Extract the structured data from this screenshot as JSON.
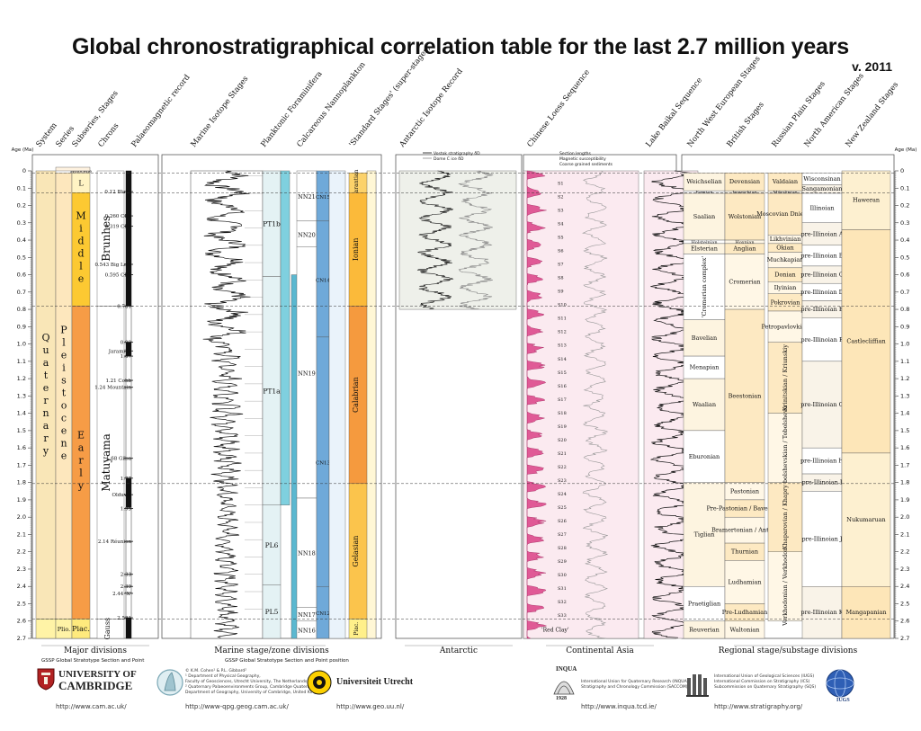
{
  "title": "Global chronostratigraphical correlation table for the last 2.7 million years",
  "version": "v. 2011",
  "chart_data": {
    "type": "table",
    "age_axis": {
      "label": "Age (Ma)",
      "range": [
        0,
        2.7
      ],
      "ticks": [
        "0",
        "0.1",
        "0.2",
        "0.3",
        "0.4",
        "0.5",
        "0.6",
        "0.7",
        "0.8",
        "0.9",
        "1.0",
        "1.1",
        "1.2",
        "1.3",
        "1.4",
        "1.5",
        "1.6",
        "1.7",
        "1.8",
        "1.9",
        "2.0",
        "2.1",
        "2.2",
        "2.3",
        "2.4",
        "2.5",
        "2.6",
        "2.7"
      ]
    },
    "column_headers": [
      "System",
      "Series",
      "Subseries, Stages",
      "Chrons",
      "Palaeomagnetic record",
      "Marine Isotope Stages",
      "Planktonic Foraminifera",
      "Calcareous Nannoplankton",
      "'Standard Stages' (super-stages)",
      "Antarctic Isotope Record",
      "Chinese Loess Sequence",
      "Lake Baikal Sequence",
      "North West European Stages",
      "British Stages",
      "Russian Plain Stages",
      "North American Stages",
      "New Zealand Stages"
    ],
    "system": [
      {
        "label": "Quaternary",
        "from": 0,
        "to": 2.588,
        "color": "#f9e6b7"
      }
    ],
    "series": [
      {
        "label": "Pleistocene",
        "from": 0.0117,
        "to": 2.588,
        "color": "#fde7bd"
      },
      {
        "label": "Plio.",
        "from": 2.588,
        "to": 2.7,
        "color": "#fff3a6"
      }
    ],
    "subseries": [
      {
        "label": "Holocene",
        "from": 0,
        "to": 0.0117,
        "color": "#fef2e0"
      },
      {
        "label": "L",
        "from": 0.0117,
        "to": 0.126,
        "color": "#fff3c4"
      },
      {
        "label": "Middle",
        "from": 0.126,
        "to": 0.781,
        "color": "#fcc932"
      },
      {
        "label": "Early",
        "from": 0.781,
        "to": 2.588,
        "color": "#f69c46"
      },
      {
        "label": "Piac.",
        "from": 2.588,
        "to": 2.7,
        "color": "#ffea7d"
      }
    ],
    "chrons": [
      {
        "label": "Brunhes",
        "from": 0,
        "to": 0.781
      },
      {
        "label": "Matuyama",
        "from": 0.781,
        "to": 2.588
      },
      {
        "label": "Gauss",
        "from": 2.588,
        "to": 2.7
      }
    ],
    "palaeomag_normal": [
      [
        0,
        0.781
      ],
      [
        0.99,
        1.07
      ],
      [
        1.775,
        1.945
      ],
      [
        2.581,
        2.7
      ]
    ],
    "palaeomag_events": [
      {
        "age": 0.12,
        "label": "0.12 Blake"
      },
      {
        "age": 0.26,
        "label": "0.260 CR3"
      },
      {
        "age": 0.32,
        "label": "0.319 CR1"
      },
      {
        "age": 0.54,
        "label": "0.543 Big Lost"
      },
      {
        "age": 0.6,
        "label": "0.595 CR2"
      },
      {
        "age": 0.781,
        "label": "0.781"
      },
      {
        "age": 0.99,
        "label": "0.99"
      },
      {
        "age": 1.04,
        "label": "Jaramillo"
      },
      {
        "age": 1.07,
        "label": "1.07"
      },
      {
        "age": 1.21,
        "label": "1.21 Cobb"
      },
      {
        "age": 1.25,
        "label": "1.24 Mountain"
      },
      {
        "age": 1.66,
        "label": "1.68 Gilsa"
      },
      {
        "age": 1.775,
        "label": "1.77"
      },
      {
        "age": 1.87,
        "label": "Olduvai"
      },
      {
        "age": 1.95,
        "label": "1.95"
      },
      {
        "age": 2.14,
        "label": "2.14 Réunion"
      },
      {
        "age": 2.33,
        "label": "2.33"
      },
      {
        "age": 2.4,
        "label": "2.39"
      },
      {
        "age": 2.44,
        "label": "2.44 'X'"
      },
      {
        "age": 2.581,
        "label": "2.581"
      }
    ],
    "foraminifera": [
      {
        "label": "PT1b",
        "from": 0,
        "to": 0.61
      },
      {
        "label": "PT1a",
        "from": 0.61,
        "to": 1.93
      },
      {
        "label": "PL6",
        "from": 1.93,
        "to": 2.39
      },
      {
        "label": "PL5",
        "from": 2.39,
        "to": 2.7
      }
    ],
    "nannoplankton": [
      {
        "label": "NN21",
        "from": 0,
        "to": 0.29
      },
      {
        "label": "NN20",
        "from": 0.29,
        "to": 0.44
      },
      {
        "label": "NN19",
        "from": 0.44,
        "to": 1.89
      },
      {
        "label": "NN18",
        "from": 1.89,
        "to": 2.52
      },
      {
        "label": "NN17",
        "from": 2.52,
        "to": 2.6
      },
      {
        "label": "NN16",
        "from": 2.6,
        "to": 2.7
      }
    ],
    "nannoplankton_cn": [
      {
        "label": "CN15",
        "from": 0,
        "to": 0.29
      },
      {
        "label": "CN14",
        "from": 0.29,
        "to": 0.96
      },
      {
        "label": "CN13",
        "from": 0.96,
        "to": 2.4
      },
      {
        "label": "CN12",
        "from": 2.4,
        "to": 2.7
      }
    ],
    "standard_stages": [
      {
        "label": "Tarantian",
        "from": 0.0117,
        "to": 0.126,
        "color": "#fcd26a"
      },
      {
        "label": "Ionian",
        "from": 0.126,
        "to": 0.781,
        "color": "#fbba3a"
      },
      {
        "label": "Calabrian",
        "from": 0.781,
        "to": 1.806,
        "color": "#f59a3e"
      },
      {
        "label": "Gelasian",
        "from": 1.806,
        "to": 2.588,
        "color": "#fbc44c"
      },
      {
        "label": "Piac.",
        "from": 2.588,
        "to": 2.7,
        "color": "#fff08a"
      }
    ],
    "nw_european_stages": [
      {
        "label": "Weichselian",
        "from": 0.0117,
        "to": 0.115
      },
      {
        "label": "Eemian",
        "from": 0.115,
        "to": 0.13
      },
      {
        "label": "Saalian",
        "from": 0.13,
        "to": 0.4
      },
      {
        "label": "Holsteinian",
        "from": 0.4,
        "to": 0.42
      },
      {
        "label": "Elsterian",
        "from": 0.42,
        "to": 0.48
      },
      {
        "label": "'Cromerian complex'",
        "from": 0.48,
        "to": 0.86
      },
      {
        "label": "Bavelian",
        "from": 0.86,
        "to": 1.07
      },
      {
        "label": "Menapian",
        "from": 1.07,
        "to": 1.2
      },
      {
        "label": "Waalian",
        "from": 1.2,
        "to": 1.5
      },
      {
        "label": "Eburonian",
        "from": 1.5,
        "to": 1.8
      },
      {
        "label": "Tiglian",
        "from": 1.8,
        "to": 2.4
      },
      {
        "label": "Praetiglian",
        "from": 2.4,
        "to": 2.6
      },
      {
        "label": "Reuverian",
        "from": 2.6,
        "to": 2.7
      }
    ],
    "british_stages": [
      {
        "label": "Devensian",
        "from": 0.0117,
        "to": 0.115
      },
      {
        "label": "Ipswichian",
        "from": 0.115,
        "to": 0.13
      },
      {
        "label": "Wolstonian",
        "from": 0.13,
        "to": 0.4
      },
      {
        "label": "Hoxnian",
        "from": 0.4,
        "to": 0.42
      },
      {
        "label": "Anglian",
        "from": 0.42,
        "to": 0.48
      },
      {
        "label": "Cromerian",
        "from": 0.48,
        "to": 0.8
      },
      {
        "label": "Beestonian",
        "from": 0.8,
        "to": 1.8
      },
      {
        "label": "Pastonian",
        "from": 1.8,
        "to": 1.9
      },
      {
        "label": "Pre-Pastonian / Baventian",
        "from": 1.9,
        "to": 2.0
      },
      {
        "label": "Bramertonian / Antian",
        "from": 2.0,
        "to": 2.15
      },
      {
        "label": "Thurnian",
        "from": 2.15,
        "to": 2.25
      },
      {
        "label": "Ludhamian",
        "from": 2.25,
        "to": 2.5
      },
      {
        "label": "Pre-Ludhamian",
        "from": 2.5,
        "to": 2.6
      },
      {
        "label": "Waltonian",
        "from": 2.6,
        "to": 2.7
      }
    ],
    "russian_stages": [
      {
        "label": "Valdaian",
        "from": 0.0117,
        "to": 0.115
      },
      {
        "label": "Mikulinian",
        "from": 0.115,
        "to": 0.13
      },
      {
        "label": "Moscovian Dnieper",
        "from": 0.13,
        "to": 0.37
      },
      {
        "label": "Likhvinian",
        "from": 0.37,
        "to": 0.42
      },
      {
        "label": "Okian",
        "from": 0.42,
        "to": 0.47
      },
      {
        "label": "Muchkapian",
        "from": 0.47,
        "to": 0.56
      },
      {
        "label": "Donian",
        "from": 0.56,
        "to": 0.64
      },
      {
        "label": "Ilyinian",
        "from": 0.64,
        "to": 0.71
      },
      {
        "label": "Pokrovian",
        "from": 0.71,
        "to": 0.81
      },
      {
        "label": "Petropavlovkian",
        "from": 0.81,
        "to": 0.99
      },
      {
        "label": "Krinitskian / Kriunskiy",
        "from": 0.99,
        "to": 1.4
      },
      {
        "label": "Tobolshevskian / Tobolshevo",
        "from": 1.4,
        "to": 1.8
      },
      {
        "label": "Khaparovian / Khapry",
        "from": 1.8,
        "to": 2.2
      },
      {
        "label": "Verkhodonian / Verkhodon",
        "from": 2.2,
        "to": 2.6
      }
    ],
    "north_american_stages": [
      {
        "label": "Wisconsinan",
        "from": 0.0117,
        "to": 0.08
      },
      {
        "label": "Sangamonian",
        "from": 0.08,
        "to": 0.13
      },
      {
        "label": "Illinoian",
        "from": 0.13,
        "to": 0.3
      },
      {
        "label": "pre-Illinoian A",
        "from": 0.3,
        "to": 0.43
      },
      {
        "label": "pre-Illinoian B",
        "from": 0.43,
        "to": 0.55
      },
      {
        "label": "pre-Illinoian C",
        "from": 0.55,
        "to": 0.65
      },
      {
        "label": "pre-Illinoian D",
        "from": 0.65,
        "to": 0.75
      },
      {
        "label": "pre-Illinoian E",
        "from": 0.75,
        "to": 0.85
      },
      {
        "label": "pre-Illinoian F",
        "from": 0.85,
        "to": 1.1
      },
      {
        "label": "pre-Illinoian G",
        "from": 1.1,
        "to": 1.6
      },
      {
        "label": "pre-Illinoian H",
        "from": 1.6,
        "to": 1.75
      },
      {
        "label": "pre-Illinoian I",
        "from": 1.75,
        "to": 1.85
      },
      {
        "label": "pre-Illinoian J",
        "from": 1.85,
        "to": 2.4
      },
      {
        "label": "pre-Illinoian K",
        "from": 2.4,
        "to": 2.7
      }
    ],
    "new_zealand_stages": [
      {
        "label": "Haweran",
        "from": 0,
        "to": 0.34
      },
      {
        "label": "Castlecliffian",
        "from": 0.34,
        "to": 1.63
      },
      {
        "label": "Nukumaruan",
        "from": 1.63,
        "to": 2.4
      },
      {
        "label": "Mangapanian",
        "from": 2.4,
        "to": 2.7
      }
    ],
    "group_labels": [
      "Major divisions",
      "Marine stage/zone divisions",
      "Antarctic",
      "Continental Asia",
      "Regional stage/substage divisions"
    ],
    "gssp_note": "GSSP    Global Stratotype Section and Point",
    "gssp_note2": "GSSP    Global Stratotype Section and Point position",
    "antarctic_legend": [
      "Vostok stratigraphy δD",
      "Dome C ice δD"
    ],
    "loess_legend": [
      "Section lengths",
      "Magnetic susceptibility",
      "Coarse grained sediments"
    ],
    "loess_units": [
      "S1",
      "S2",
      "S3",
      "S4",
      "S5",
      "S6",
      "S7",
      "S8",
      "S9",
      "S10",
      "S11",
      "S12",
      "S13",
      "S14",
      "S15",
      "S16",
      "S17",
      "S18",
      "S19",
      "S20",
      "S21",
      "S22",
      "S23",
      "S24",
      "S25",
      "S26",
      "S27",
      "S28",
      "S29",
      "S30",
      "S31",
      "S32",
      "S33"
    ],
    "loess_red_clay": "'Red Clay'"
  },
  "footer": {
    "cambridge": {
      "name1": "UNIVERSITY OF",
      "name2": "CAMBRIDGE",
      "url": "http://www.cam.ac.uk/"
    },
    "qpg": {
      "lines": [
        "© K.M. Cohen¹ & P.L. Gibbard²",
        "¹ Department of Physical Geography,",
        "Faculty of Geosciences, Utrecht University, The Netherlands",
        "² Quaternary Palaeoenvironments Group, Cambridge Quaternary,",
        "Department of Geography, University of Cambridge, United Kingdom"
      ],
      "url": "http://www-qpg.geog.cam.ac.uk/"
    },
    "utrecht": {
      "name": "Universiteit Utrecht",
      "url": "http://www.geo.uu.nl/"
    },
    "inqua": {
      "name": "INQUA",
      "year": "1928",
      "lines": [
        "International Union for Quaternary Research (INQUA)",
        "Stratigraphy and Chronology Commission (SACCOM)"
      ],
      "url": "http://www.inqua.tcd.ie/"
    },
    "iugs": {
      "lines": [
        "International Union of Geological Sciences (IUGS)",
        "International Commission on Stratigraphy (ICS)",
        "Subcommission on Quaternary Stratigraphy (SQS)"
      ],
      "url": "http://www.stratigraphy.org/",
      "name": "IUGS"
    }
  }
}
